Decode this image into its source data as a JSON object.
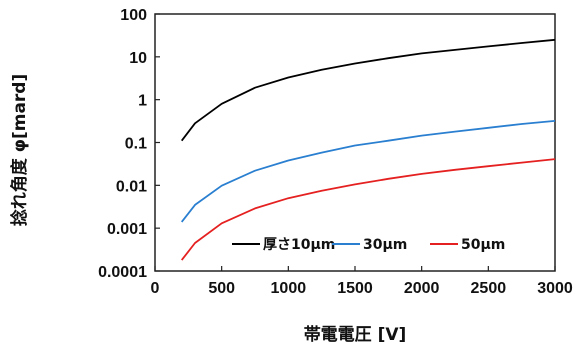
{
  "chart_data": {
    "type": "line",
    "title": "",
    "xlabel": "帯電電圧 [V]",
    "ylabel": "捻れ角度 φ[mard]",
    "xlim": [
      0,
      3000
    ],
    "ylim": [
      0.0001,
      100
    ],
    "yscale": "log",
    "x_ticks": [
      "0",
      "500",
      "1000",
      "1500",
      "2000",
      "2500",
      "3000"
    ],
    "y_ticks": [
      "0.0001",
      "0.001",
      "0.01",
      "0.1",
      "1",
      "10",
      "100"
    ],
    "grid": false,
    "legend_position": "bottom-right",
    "series": [
      {
        "name": "厚さ10μm",
        "color": "#000000",
        "x": [
          200,
          300,
          500,
          750,
          1000,
          1250,
          1500,
          1750,
          2000,
          2250,
          2500,
          2750,
          3000
        ],
        "y": [
          0.11,
          0.28,
          0.8,
          1.9,
          3.3,
          5.0,
          7.0,
          9.3,
          12,
          14.5,
          17.5,
          21,
          25
        ]
      },
      {
        "name": "30μm",
        "color": "#2a7fd0",
        "x": [
          200,
          300,
          500,
          750,
          1000,
          1250,
          1500,
          1750,
          2000,
          2250,
          2500,
          2750,
          3000
        ],
        "y": [
          0.0014,
          0.0035,
          0.0098,
          0.022,
          0.038,
          0.058,
          0.085,
          0.11,
          0.145,
          0.18,
          0.22,
          0.27,
          0.32
        ]
      },
      {
        "name": "50μm",
        "color": "#e52020",
        "x": [
          200,
          300,
          500,
          750,
          1000,
          1250,
          1500,
          1750,
          2000,
          2250,
          2500,
          2750,
          3000
        ],
        "y": [
          0.00018,
          0.00045,
          0.0013,
          0.0029,
          0.005,
          0.0075,
          0.0105,
          0.0142,
          0.0185,
          0.023,
          0.028,
          0.034,
          0.041
        ]
      }
    ]
  }
}
